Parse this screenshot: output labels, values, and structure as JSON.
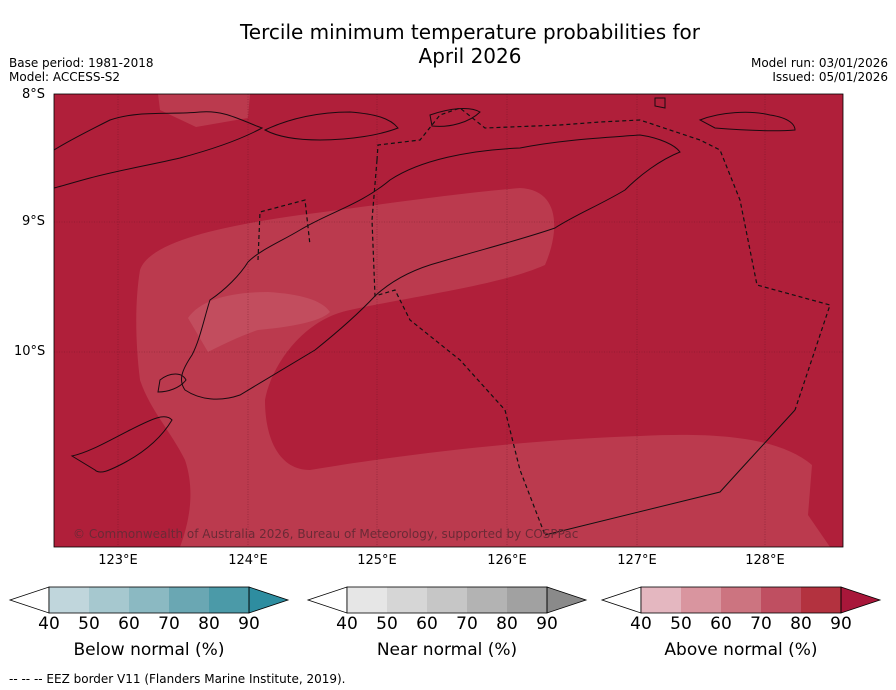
{
  "title_line1": "Tercile minimum temperature probabilities for",
  "title_line2": "April 2026",
  "base_period": "Base period: 1981-2018",
  "model": "Model: ACCESS-S2",
  "model_run": "Model run: 03/01/2026",
  "issued": "Issued: 05/01/2026",
  "lat_labels": [
    "8°S",
    "9°S",
    "10°S"
  ],
  "lon_labels": [
    "123°E",
    "124°E",
    "125°E",
    "126°E",
    "127°E",
    "128°E"
  ],
  "copyright": "© Commonwealth of Australia 2026, Bureau of Meteorology, supported by COSPPac",
  "colorbars": [
    {
      "label": "Below normal (%)",
      "ticks": [
        "40",
        "50",
        "60",
        "70",
        "80",
        "90"
      ],
      "colors": [
        "#ffffff",
        "#c0d6dc",
        "#a6c8cf",
        "#8bb9c2",
        "#6aa7b3",
        "#4b9aa8",
        "#2e8da0"
      ]
    },
    {
      "label": "Near normal (%)",
      "ticks": [
        "40",
        "50",
        "60",
        "70",
        "80",
        "90"
      ],
      "colors": [
        "#ffffff",
        "#e6e6e6",
        "#d6d6d6",
        "#c6c6c6",
        "#b3b3b3",
        "#a1a1a1",
        "#8a8a8a"
      ]
    },
    {
      "label": "Above normal (%)",
      "ticks": [
        "40",
        "50",
        "60",
        "70",
        "80",
        "90"
      ],
      "colors": [
        "#ffffff",
        "#e4b7c0",
        "#d9959f",
        "#cc7480",
        "#bf4f61",
        "#b3323f",
        "#a8173a"
      ]
    }
  ],
  "footnote": "--  --  -- EEZ border V11 (Flanders Marine Institute, 2019).",
  "map_colors": {
    "dark": "#b01f3a",
    "mid": "#bb3a4e",
    "light": "#c24d5e"
  }
}
